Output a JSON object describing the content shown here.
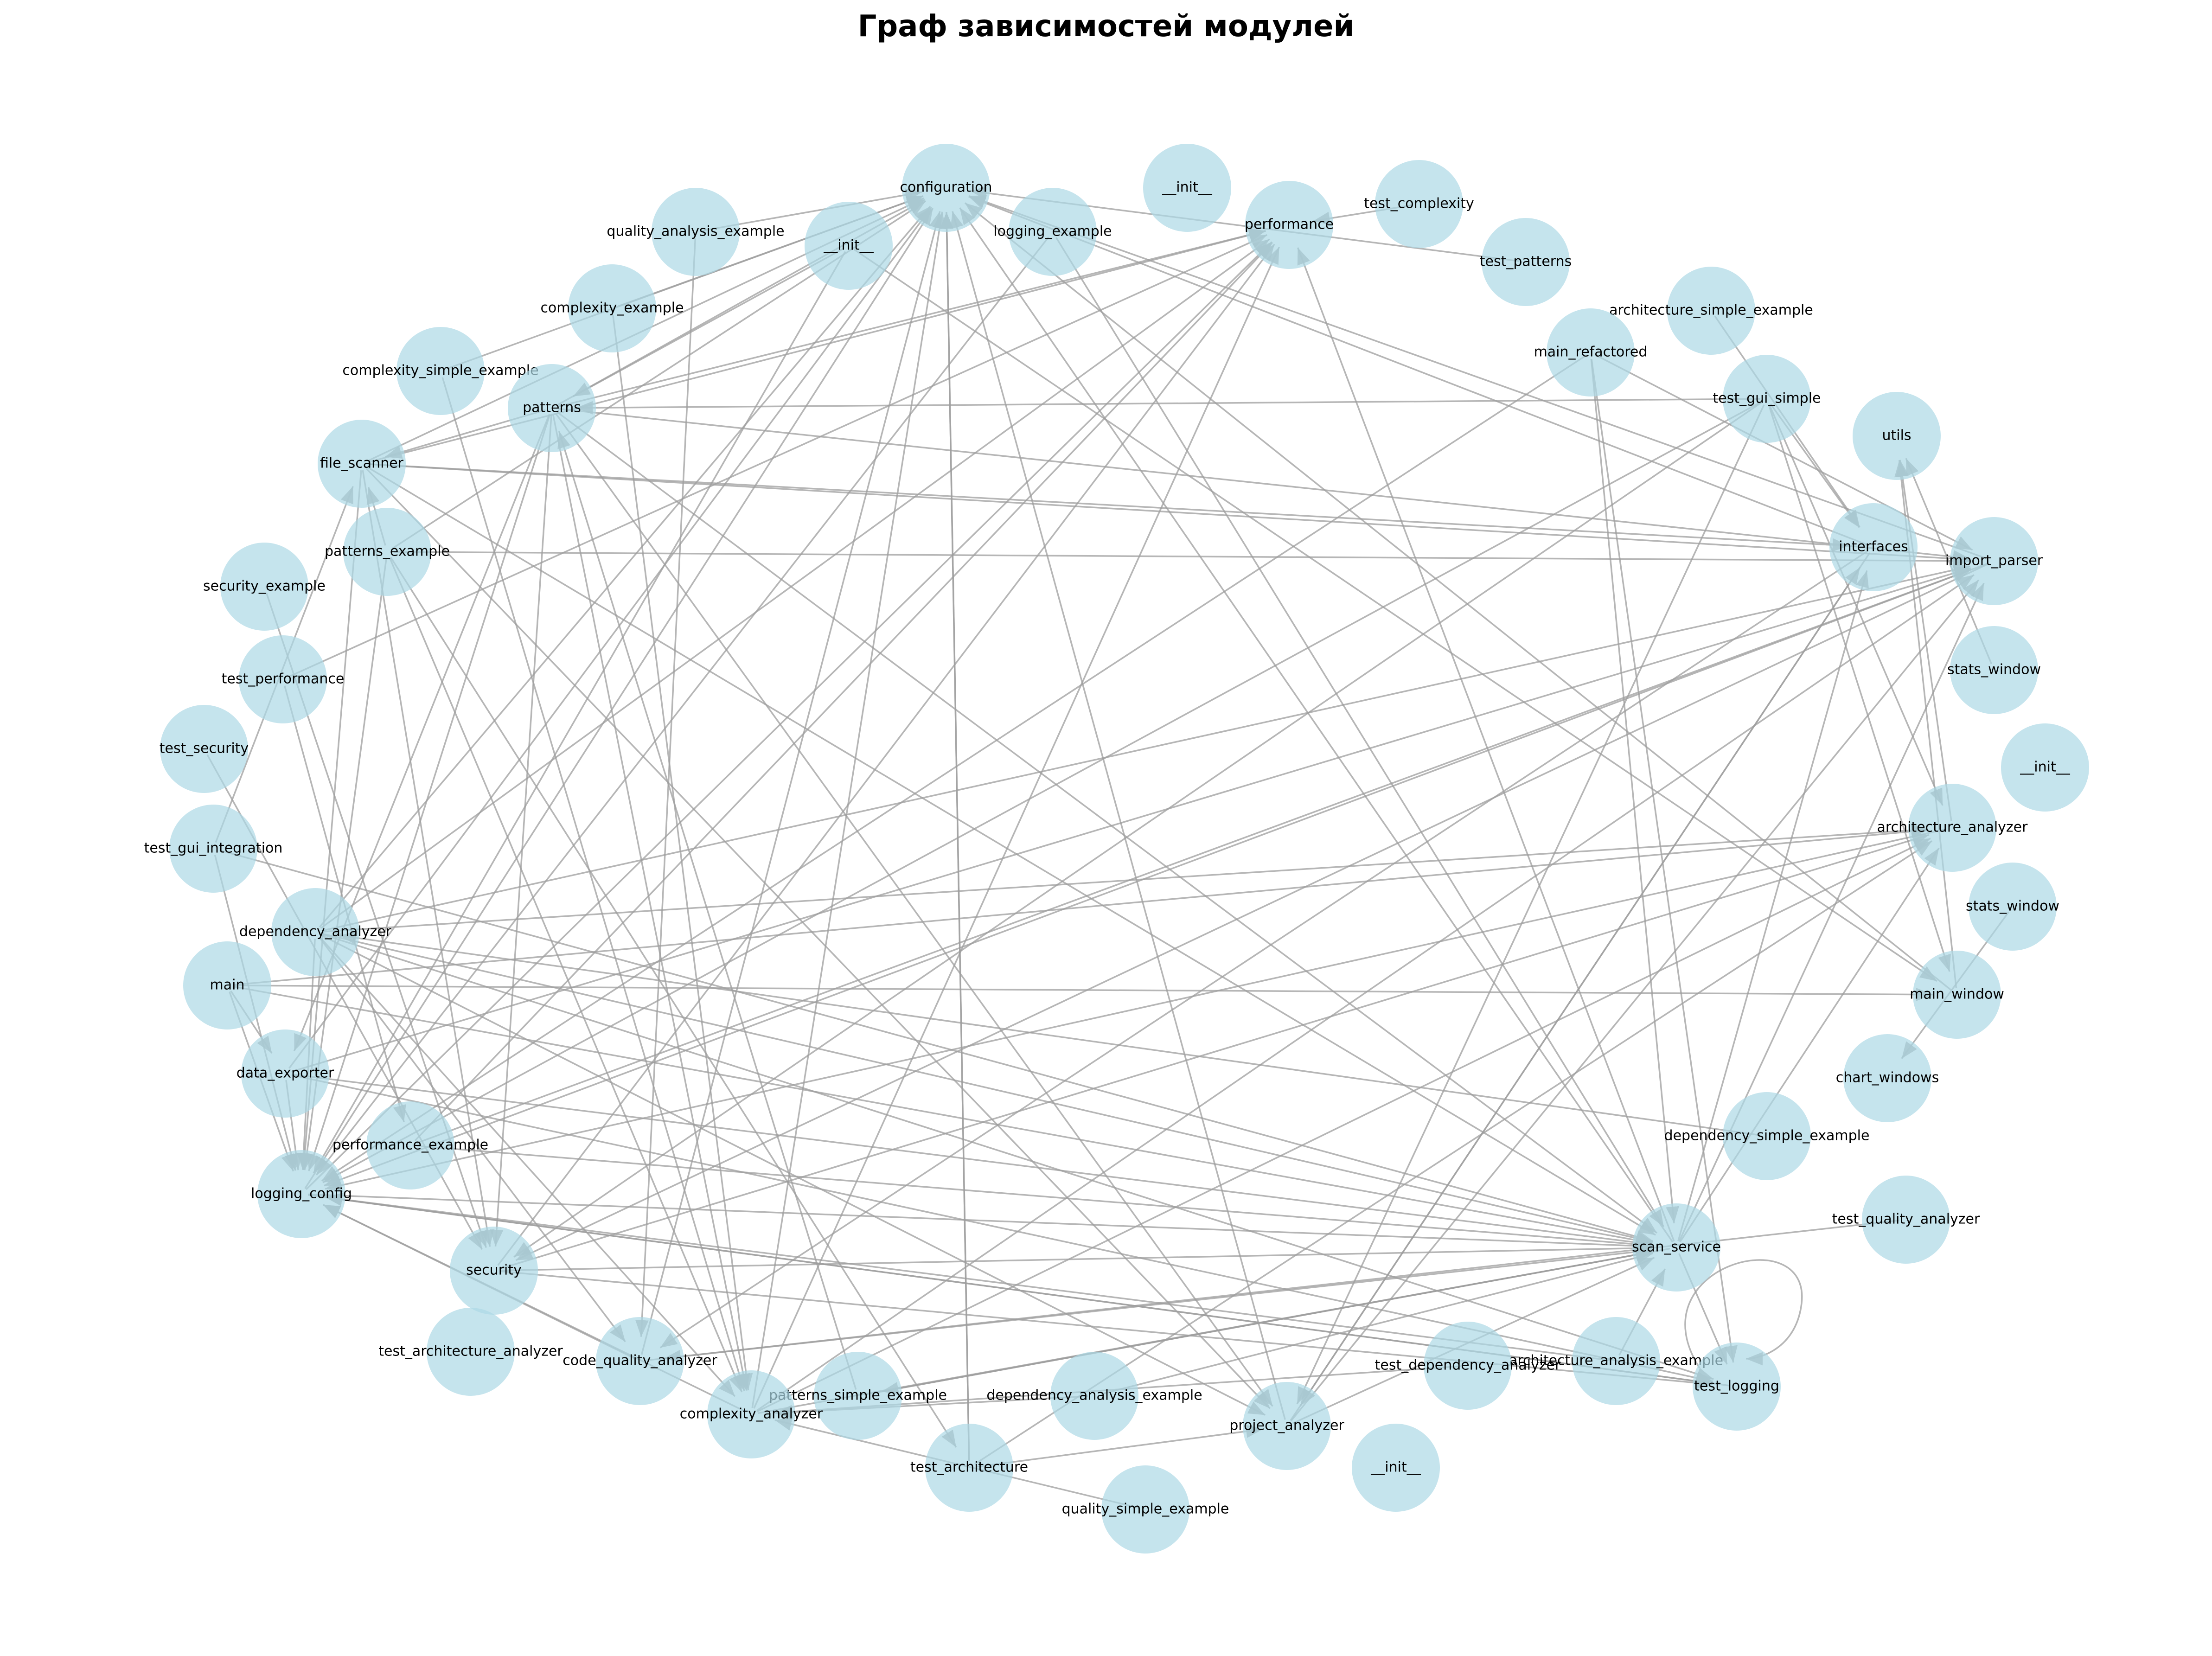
{
  "title": "Граф зависимостей модулей",
  "node_color": "#add8e6",
  "edge_color": "#9e9e9e",
  "nodes": [
    {
      "id": "configuration",
      "label": "configuration"
    },
    {
      "id": "init_top_right",
      "label": "__init__"
    },
    {
      "id": "performance",
      "label": "performance"
    },
    {
      "id": "test_complexity",
      "label": "test_complexity"
    },
    {
      "id": "logging_example",
      "label": "logging_example"
    },
    {
      "id": "init_top",
      "label": "__init__"
    },
    {
      "id": "quality_analysis_example",
      "label": "quality_analysis_example"
    },
    {
      "id": "test_patterns",
      "label": "test_patterns"
    },
    {
      "id": "complexity_example",
      "label": "complexity_example"
    },
    {
      "id": "architecture_simple_example",
      "label": "architecture_simple_example"
    },
    {
      "id": "main_refactored",
      "label": "main_refactored"
    },
    {
      "id": "complexity_simple_example",
      "label": "complexity_simple_example"
    },
    {
      "id": "test_gui_simple",
      "label": "test_gui_simple"
    },
    {
      "id": "patterns",
      "label": "patterns"
    },
    {
      "id": "utils",
      "label": "utils"
    },
    {
      "id": "file_scanner",
      "label": "file_scanner"
    },
    {
      "id": "interfaces",
      "label": "interfaces"
    },
    {
      "id": "import_parser",
      "label": "import_parser"
    },
    {
      "id": "patterns_example",
      "label": "patterns_example"
    },
    {
      "id": "security_example",
      "label": "security_example"
    },
    {
      "id": "stats_window_top",
      "label": "stats_window"
    },
    {
      "id": "test_performance",
      "label": "test_performance"
    },
    {
      "id": "test_security",
      "label": "test_security"
    },
    {
      "id": "init_right",
      "label": "__init__"
    },
    {
      "id": "architecture_analyzer",
      "label": "architecture_analyzer"
    },
    {
      "id": "test_gui_integration",
      "label": "test_gui_integration"
    },
    {
      "id": "stats_window_bottom",
      "label": "stats_window"
    },
    {
      "id": "dependency_analyzer",
      "label": "dependency_analyzer"
    },
    {
      "id": "main",
      "label": "main"
    },
    {
      "id": "main_window",
      "label": "main_window"
    },
    {
      "id": "data_exporter",
      "label": "data_exporter"
    },
    {
      "id": "chart_windows",
      "label": "chart_windows"
    },
    {
      "id": "dependency_simple_example",
      "label": "dependency_simple_example"
    },
    {
      "id": "performance_example",
      "label": "performance_example"
    },
    {
      "id": "logging_config",
      "label": "logging_config"
    },
    {
      "id": "test_quality_analyzer",
      "label": "test_quality_analyzer"
    },
    {
      "id": "scan_service",
      "label": "scan_service"
    },
    {
      "id": "security",
      "label": "security"
    },
    {
      "id": "test_architecture_analyzer",
      "label": "test_architecture_analyzer"
    },
    {
      "id": "code_quality_analyzer",
      "label": "code_quality_analyzer"
    },
    {
      "id": "architecture_analysis_example",
      "label": "architecture_analysis_example"
    },
    {
      "id": "test_dependency_analyzer",
      "label": "test_dependency_analyzer"
    },
    {
      "id": "test_logging",
      "label": "test_logging"
    },
    {
      "id": "patterns_simple_example",
      "label": "patterns_simple_example"
    },
    {
      "id": "dependency_analysis_example",
      "label": "dependency_analysis_example"
    },
    {
      "id": "complexity_analyzer",
      "label": "complexity_analyzer"
    },
    {
      "id": "project_analyzer",
      "label": "project_analyzer"
    },
    {
      "id": "test_architecture",
      "label": "test_architecture"
    },
    {
      "id": "init_bottom",
      "label": "__init__"
    },
    {
      "id": "quality_simple_example",
      "label": "quality_simple_example"
    }
  ],
  "edges": [
    [
      "quality_analysis_example",
      "configuration"
    ],
    [
      "complexity_example",
      "configuration"
    ],
    [
      "complexity_simple_example",
      "configuration"
    ],
    [
      "patterns",
      "configuration"
    ],
    [
      "file_scanner",
      "configuration"
    ],
    [
      "patterns_example",
      "configuration"
    ],
    [
      "dependency_analyzer",
      "configuration"
    ],
    [
      "data_exporter",
      "configuration"
    ],
    [
      "logging_config",
      "configuration"
    ],
    [
      "scan_service",
      "configuration"
    ],
    [
      "project_analyzer",
      "configuration"
    ],
    [
      "test_architecture",
      "configuration"
    ],
    [
      "code_quality_analyzer",
      "configuration"
    ],
    [
      "complexity_analyzer",
      "configuration"
    ],
    [
      "main_window",
      "configuration"
    ],
    [
      "import_parser",
      "configuration"
    ],
    [
      "interfaces",
      "configuration"
    ],
    [
      "test_patterns",
      "configuration"
    ],
    [
      "test_complexity",
      "performance"
    ],
    [
      "patterns",
      "performance"
    ],
    [
      "file_scanner",
      "performance"
    ],
    [
      "scan_service",
      "performance"
    ],
    [
      "security",
      "performance"
    ],
    [
      "complexity_analyzer",
      "performance"
    ],
    [
      "dependency_analyzer",
      "performance"
    ],
    [
      "logging_config",
      "performance"
    ],
    [
      "performance_example",
      "performance"
    ],
    [
      "test_performance",
      "performance"
    ],
    [
      "init_top",
      "patterns"
    ],
    [
      "init_top",
      "logging_config"
    ],
    [
      "init_top",
      "main_window"
    ],
    [
      "logging_example",
      "logging_config"
    ],
    [
      "logging_example",
      "scan_service"
    ],
    [
      "test_gui_simple",
      "patterns"
    ],
    [
      "test_gui_simple",
      "interfaces"
    ],
    [
      "test_gui_simple",
      "main_window"
    ],
    [
      "test_gui_simple",
      "logging_config"
    ],
    [
      "test_gui_simple",
      "security"
    ],
    [
      "test_gui_simple",
      "architecture_analyzer"
    ],
    [
      "test_gui_simple",
      "project_analyzer"
    ],
    [
      "main_refactored",
      "scan_service"
    ],
    [
      "main_refactored",
      "logging_config"
    ],
    [
      "main_refactored",
      "import_parser"
    ],
    [
      "main_refactored",
      "test_logging"
    ],
    [
      "patterns",
      "file_scanner"
    ],
    [
      "patterns",
      "import_parser"
    ],
    [
      "patterns",
      "logging_config"
    ],
    [
      "patterns",
      "data_exporter"
    ],
    [
      "patterns",
      "security"
    ],
    [
      "patterns",
      "scan_service"
    ],
    [
      "patterns",
      "project_analyzer"
    ],
    [
      "patterns",
      "complexity_analyzer"
    ],
    [
      "file_scanner",
      "interfaces"
    ],
    [
      "file_scanner",
      "import_parser"
    ],
    [
      "file_scanner",
      "logging_config"
    ],
    [
      "file_scanner",
      "scan_service"
    ],
    [
      "file_scanner",
      "project_analyzer"
    ],
    [
      "file_scanner",
      "security"
    ],
    [
      "patterns_example",
      "import_parser"
    ],
    [
      "patterns_example",
      "file_scanner"
    ],
    [
      "patterns_example",
      "logging_config"
    ],
    [
      "patterns_example",
      "test_architecture"
    ],
    [
      "patterns_example",
      "complexity_analyzer"
    ],
    [
      "test_gui_integration",
      "file_scanner"
    ],
    [
      "test_gui_integration",
      "logging_config"
    ],
    [
      "test_gui_integration",
      "scan_service"
    ],
    [
      "test_security",
      "security"
    ],
    [
      "dependency_analyzer",
      "scan_service"
    ],
    [
      "dependency_analyzer",
      "test_logging"
    ],
    [
      "dependency_analyzer",
      "project_analyzer"
    ],
    [
      "dependency_analyzer",
      "logging_config"
    ],
    [
      "dependency_analyzer",
      "import_parser"
    ],
    [
      "dependency_analyzer",
      "architecture_analyzer"
    ],
    [
      "dependency_analyzer",
      "code_quality_analyzer"
    ],
    [
      "dependency_analyzer",
      "complexity_analyzer"
    ],
    [
      "main",
      "main_window"
    ],
    [
      "main",
      "architecture_analyzer"
    ],
    [
      "main",
      "logging_config"
    ],
    [
      "main",
      "data_exporter"
    ],
    [
      "main",
      "scan_service"
    ],
    [
      "data_exporter",
      "scan_service"
    ],
    [
      "data_exporter",
      "logging_config"
    ],
    [
      "data_exporter",
      "import_parser"
    ],
    [
      "data_exporter",
      "test_logging"
    ],
    [
      "performance_example",
      "scan_service"
    ],
    [
      "performance_example",
      "import_parser"
    ],
    [
      "logging_config",
      "scan_service"
    ],
    [
      "logging_config",
      "test_logging"
    ],
    [
      "security",
      "scan_service"
    ],
    [
      "security",
      "test_logging"
    ],
    [
      "security",
      "architecture_analyzer"
    ],
    [
      "code_quality_analyzer",
      "scan_service"
    ],
    [
      "code_quality_analyzer",
      "logging_config"
    ],
    [
      "complexity_analyzer",
      "scan_service"
    ],
    [
      "complexity_analyzer",
      "logging_config"
    ],
    [
      "complexity_analyzer",
      "architecture_analyzer"
    ],
    [
      "complexity_analyzer",
      "import_parser"
    ],
    [
      "test_architecture",
      "architecture_analyzer"
    ],
    [
      "test_architecture",
      "project_analyzer"
    ],
    [
      "test_architecture",
      "configuration"
    ],
    [
      "quality_simple_example",
      "complexity_analyzer"
    ],
    [
      "dependency_analysis_example",
      "scan_service"
    ],
    [
      "dependency_analysis_example",
      "complexity_analyzer"
    ],
    [
      "dependency_simple_example",
      "dependency_analyzer"
    ],
    [
      "project_analyzer",
      "scan_service"
    ],
    [
      "project_analyzer",
      "interfaces"
    ],
    [
      "project_analyzer",
      "import_parser"
    ],
    [
      "scan_service",
      "interfaces"
    ],
    [
      "scan_service",
      "import_parser"
    ],
    [
      "scan_service",
      "architecture_analyzer"
    ],
    [
      "scan_service",
      "test_logging"
    ],
    [
      "scan_service",
      "patterns_simple_example"
    ],
    [
      "test_quality_analyzer",
      "code_quality_analyzer"
    ],
    [
      "architecture_analysis_example",
      "scan_service"
    ],
    [
      "architecture_analysis_example",
      "logging_config"
    ],
    [
      "test_dependency_analyzer",
      "complexity_analyzer"
    ],
    [
      "test_logging",
      "logging_config"
    ],
    [
      "patterns_simple_example",
      "scan_service"
    ],
    [
      "patterns_simple_example",
      "patterns"
    ],
    [
      "architecture_simple_example",
      "interfaces"
    ],
    [
      "stats_window_top",
      "utils"
    ],
    [
      "stats_window_bottom",
      "chart_windows"
    ],
    [
      "architecture_analyzer",
      "utils"
    ],
    [
      "main_window",
      "utils"
    ],
    [
      "import_parser",
      "security"
    ],
    [
      "import_parser",
      "logging_config"
    ],
    [
      "interfaces",
      "code_quality_analyzer"
    ],
    [
      "interfaces",
      "project_analyzer"
    ],
    [
      "architecture_analyzer",
      "logging_config"
    ],
    [
      "quality_analysis_example",
      "code_quality_analyzer"
    ],
    [
      "complexity_example",
      "complexity_analyzer"
    ],
    [
      "complexity_simple_example",
      "complexity_analyzer"
    ],
    [
      "security_example",
      "security"
    ],
    [
      "test_performance",
      "performance_example"
    ]
  ],
  "self_loops": [
    "test_logging"
  ]
}
